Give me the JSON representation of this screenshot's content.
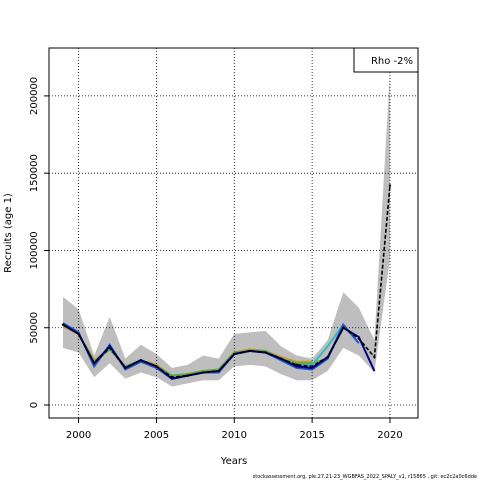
{
  "chart_data": {
    "type": "line",
    "x_label": "Years",
    "y_label": "Recruits (age 1)",
    "legend_text": "Rho -2%",
    "legend_position": "top-right",
    "footer": "stockassessment.org, ple.27.21-23_WGBFAS_2022_SPALY_v1, r15865 , git: ec2c2a0c6dde",
    "grid": true,
    "x": [
      1999,
      2000,
      2001,
      2002,
      2003,
      2004,
      2005,
      2006,
      2007,
      2008,
      2009,
      2010,
      2011,
      2012,
      2013,
      2014,
      2015,
      2016,
      2017,
      2018,
      2019,
      2020
    ],
    "xlim": [
      1998.1,
      2021.8
    ],
    "xticks": [
      2000,
      2005,
      2010,
      2015,
      2020
    ],
    "ylim": [
      -8400,
      231000
    ],
    "yticks": [
      0,
      50000,
      100000,
      150000,
      200000
    ],
    "band": {
      "color": "#bebebe",
      "upper": [
        70000,
        62000,
        32000,
        57000,
        30000,
        39000,
        33000,
        24000,
        26000,
        32000,
        30000,
        46000,
        47000,
        48000,
        38000,
        32000,
        30000,
        42000,
        73000,
        63000,
        42000,
        215000
      ],
      "lower": [
        37000,
        34000,
        18000,
        27000,
        17000,
        21000,
        18000,
        12000,
        14000,
        16000,
        16000,
        25000,
        26000,
        25000,
        20000,
        16000,
        16000,
        22000,
        37000,
        32000,
        21000,
        95000
      ]
    },
    "series": [
      {
        "color": "#cc9933",
        "values": [
          51000,
          46000,
          29000,
          36000,
          25000,
          29000,
          26000,
          19000,
          20000,
          22000,
          23000,
          34000,
          36000,
          35000,
          31000,
          28000,
          28000,
          null,
          null,
          null,
          null,
          null
        ]
      },
      {
        "color": "#66aa33",
        "values": [
          52000,
          46000,
          28000,
          36000,
          25000,
          29000,
          25000,
          19000,
          20000,
          22000,
          23000,
          34000,
          35000,
          35000,
          30000,
          27000,
          27000,
          30000,
          null,
          null,
          null,
          null
        ]
      },
      {
        "color": "#33bbbb",
        "values": [
          52000,
          46000,
          27000,
          37000,
          24000,
          29000,
          25000,
          18000,
          19000,
          21000,
          22000,
          33000,
          35000,
          34000,
          30000,
          26000,
          26000,
          38000,
          52000,
          null,
          null,
          null
        ]
      },
      {
        "color": "#2255cc",
        "values": [
          53000,
          47000,
          25000,
          39000,
          23000,
          28000,
          24000,
          17000,
          19000,
          21000,
          21000,
          33000,
          35000,
          34000,
          29000,
          24000,
          23000,
          30000,
          52000,
          40000,
          null,
          null
        ]
      },
      {
        "color": "#000080",
        "values": [
          52000,
          46000,
          27000,
          38000,
          24000,
          29000,
          25000,
          17000,
          19000,
          21000,
          22000,
          33000,
          35000,
          34000,
          30000,
          25000,
          24000,
          31000,
          50000,
          44000,
          22000,
          null
        ]
      },
      {
        "color": "#000000",
        "dashed": true,
        "points": true,
        "values": [
          52000,
          46000,
          27000,
          37000,
          24000,
          29000,
          25000,
          18000,
          19000,
          21000,
          22000,
          33000,
          35000,
          34000,
          30000,
          26000,
          25000,
          31000,
          50000,
          43000,
          31000,
          142000
        ]
      }
    ]
  }
}
